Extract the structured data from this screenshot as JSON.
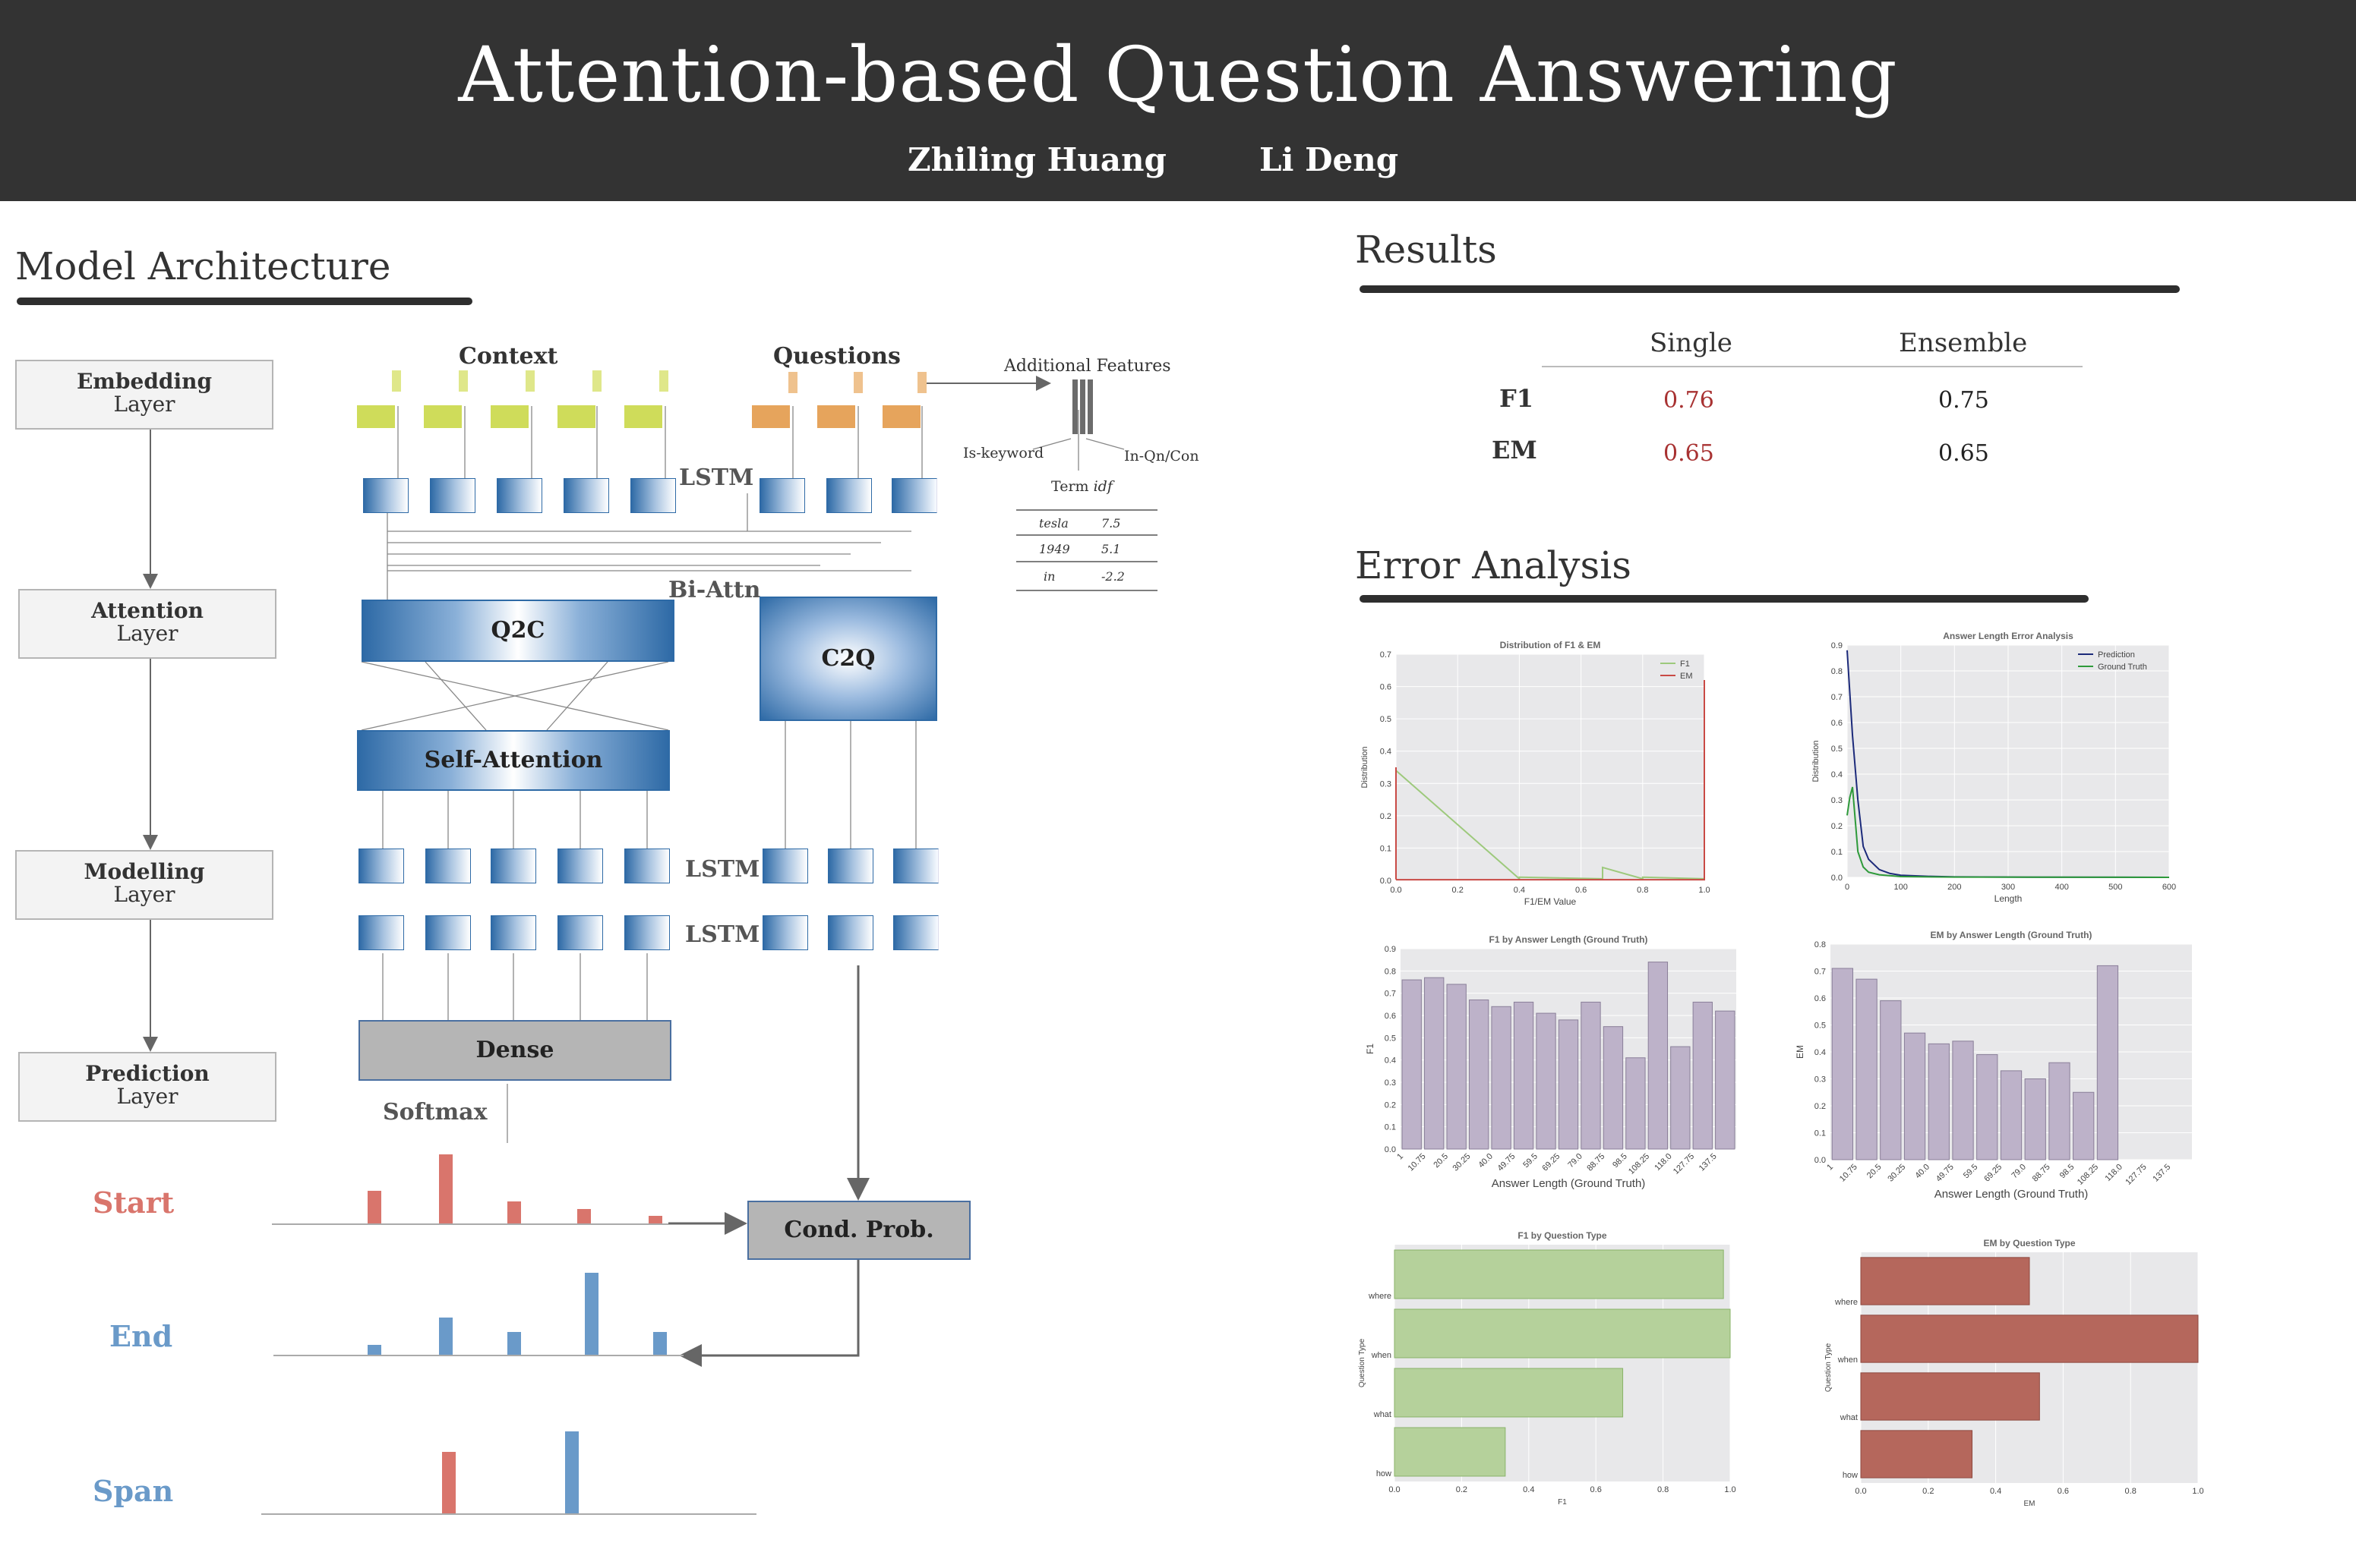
{
  "header": {
    "title": "Attention-based Question Answering",
    "authors": [
      "Zhiling Huang",
      "Li Deng"
    ]
  },
  "model": {
    "title": "Model Architecture",
    "layers": [
      {
        "line1": "Embedding",
        "line2": "Layer"
      },
      {
        "line1": "Attention",
        "line2": "Layer"
      },
      {
        "line1": "Modelling",
        "line2": "Layer"
      },
      {
        "line1": "Prediction",
        "line2": "Layer"
      }
    ],
    "labels": {
      "context": "Context",
      "questions": "Questions",
      "additional": "Additional Features",
      "iskeyword": "Is-keyword",
      "inqn": "In-Qn/Con",
      "termidf": "Term",
      "idf": "idf",
      "lstm": "LSTM",
      "biattn": "Bi-Attn",
      "q2c": "Q2C",
      "c2q": "C2Q",
      "selfattn": "Self-Attention",
      "dense": "Dense",
      "softmax": "Softmax",
      "condprob": "Cond. Prob.",
      "start": "Start",
      "end": "End",
      "span": "Span"
    },
    "idf_table": [
      {
        "term": "tesla",
        "val": "7.5"
      },
      {
        "term": "1949",
        "val": "5.1"
      },
      {
        "term": "in",
        "val": "-2.2"
      }
    ],
    "colors": {
      "blue": "#2e6aa6",
      "context_token": "#cfdc5a",
      "question_token": "#e6a45c",
      "start": "#d9756c",
      "end": "#6a9ac9"
    },
    "start_bars": [
      0.45,
      0.95,
      0.3,
      0.2,
      0.1
    ],
    "end_bars": [
      0.12,
      0.45,
      0.28,
      1.0,
      0.28
    ],
    "span_bars": {
      "start": 0.9,
      "end": 1.0
    }
  },
  "results": {
    "title": "Results",
    "columns": [
      "Single",
      "Ensemble"
    ],
    "rows": [
      {
        "label": "F1",
        "single": "0.76",
        "ensemble": "0.75"
      },
      {
        "label": "EM",
        "single": "0.65",
        "ensemble": "0.65"
      }
    ]
  },
  "error": {
    "title": "Error Analysis"
  },
  "chart_data": [
    {
      "type": "line",
      "title": "Distribution of F1 & EM",
      "xlabel": "F1/EM Value",
      "ylabel": "Distribution",
      "xlim": [
        0,
        1
      ],
      "ylim": [
        0,
        0.7
      ],
      "xticks": [
        "0.0",
        "0.2",
        "0.4",
        "0.6",
        "0.8",
        "1.0"
      ],
      "yticks": [
        "0.0",
        "0.1",
        "0.2",
        "0.3",
        "0.4",
        "0.5",
        "0.6",
        "0.7"
      ],
      "legend": "top-right",
      "series": [
        {
          "name": "F1",
          "color": "#9dc97c",
          "x": [
            0.0,
            0.0,
            0.4,
            0.4,
            0.67,
            0.67,
            0.8,
            0.8,
            1.0,
            1.0
          ],
          "y": [
            0.005,
            0.34,
            0.005,
            0.01,
            0.005,
            0.04,
            0.005,
            0.01,
            0.005,
            0.62
          ]
        },
        {
          "name": "EM",
          "color": "#c94a45",
          "x": [
            0.0,
            0.0,
            0.002,
            1.0,
            1.0
          ],
          "y": [
            0.35,
            0.005,
            0.002,
            0.002,
            0.62
          ]
        }
      ]
    },
    {
      "type": "line",
      "title": "Answer Length Error Analysis",
      "xlabel": "Length",
      "ylabel": "Distribution",
      "xlim": [
        0,
        600
      ],
      "ylim": [
        0,
        0.9
      ],
      "xticks": [
        "0",
        "100",
        "200",
        "300",
        "400",
        "500",
        "600"
      ],
      "yticks": [
        "0.0",
        "0.1",
        "0.2",
        "0.3",
        "0.4",
        "0.5",
        "0.6",
        "0.7",
        "0.8",
        "0.9"
      ],
      "legend": "top-right",
      "series": [
        {
          "name": "Prediction",
          "color": "#1c2a7a",
          "x": [
            0,
            10,
            20,
            30,
            40,
            60,
            80,
            100,
            150,
            200,
            300,
            600
          ],
          "y": [
            0.88,
            0.55,
            0.3,
            0.12,
            0.07,
            0.03,
            0.015,
            0.008,
            0.004,
            0.002,
            0.001,
            0.0
          ]
        },
        {
          "name": "Ground Truth",
          "color": "#2e9a3a",
          "x": [
            0,
            5,
            10,
            20,
            30,
            40,
            60,
            100,
            200,
            600
          ],
          "y": [
            0.24,
            0.31,
            0.35,
            0.1,
            0.04,
            0.02,
            0.01,
            0.003,
            0.001,
            0.0
          ]
        }
      ]
    },
    {
      "type": "bar",
      "title": "F1 by Answer Length (Ground Truth)",
      "xlabel": "Answer Length (Ground Truth)",
      "ylabel": "F1",
      "ylim": [
        0,
        0.9
      ],
      "yticks": [
        "0.0",
        "0.1",
        "0.2",
        "0.3",
        "0.4",
        "0.5",
        "0.6",
        "0.7",
        "0.8",
        "0.9"
      ],
      "categories": [
        "1",
        "10.75",
        "20.5",
        "30.25",
        "40.0",
        "49.75",
        "59.5",
        "69.25",
        "79.0",
        "88.75",
        "98.5",
        "108.25",
        "118.0",
        "127.75",
        "137.5"
      ],
      "values": [
        0.76,
        0.77,
        0.74,
        0.67,
        0.64,
        0.66,
        0.61,
        0.58,
        0.66,
        0.55,
        0.41,
        0.84,
        0.46,
        0.66,
        0.62
      ],
      "color": "#bdb2c9"
    },
    {
      "type": "bar",
      "title": "EM by Answer Length (Ground Truth)",
      "xlabel": "Answer Length (Ground Truth)",
      "ylabel": "EM",
      "ylim": [
        0,
        0.8
      ],
      "yticks": [
        "0.0",
        "0.1",
        "0.2",
        "0.3",
        "0.4",
        "0.5",
        "0.6",
        "0.7",
        "0.8"
      ],
      "categories": [
        "1",
        "10.75",
        "20.5",
        "30.25",
        "40.0",
        "49.75",
        "59.5",
        "69.25",
        "79.0",
        "88.75",
        "98.5",
        "108.25",
        "118.0",
        "127.75",
        "137.5"
      ],
      "values": [
        0.71,
        0.67,
        0.59,
        0.47,
        0.43,
        0.44,
        0.39,
        0.33,
        0.3,
        0.36,
        0.25,
        0.72,
        0,
        0,
        0
      ],
      "color": "#bdb2c9"
    },
    {
      "type": "bar",
      "orientation": "horizontal",
      "title": "F1 by Question Type",
      "xlabel": "F1",
      "ylabel": "Question Type",
      "xlim": [
        0,
        1
      ],
      "xticks": [
        "0.0",
        "0.2",
        "0.4",
        "0.6",
        "0.8",
        "1.0"
      ],
      "categories": [
        "where",
        "when",
        "what",
        "how"
      ],
      "values": [
        0.98,
        1.0,
        0.68,
        0.33
      ],
      "color": "#b5d19b"
    },
    {
      "type": "bar",
      "orientation": "horizontal",
      "title": "EM by Question Type",
      "xlabel": "EM",
      "ylabel": "Question Type",
      "xlim": [
        0,
        1
      ],
      "xticks": [
        "0.0",
        "0.2",
        "0.4",
        "0.6",
        "0.8",
        "1.0"
      ],
      "categories": [
        "where",
        "when",
        "what",
        "how"
      ],
      "values": [
        0.5,
        1.0,
        0.53,
        0.33
      ],
      "color": "#b5675c"
    }
  ]
}
